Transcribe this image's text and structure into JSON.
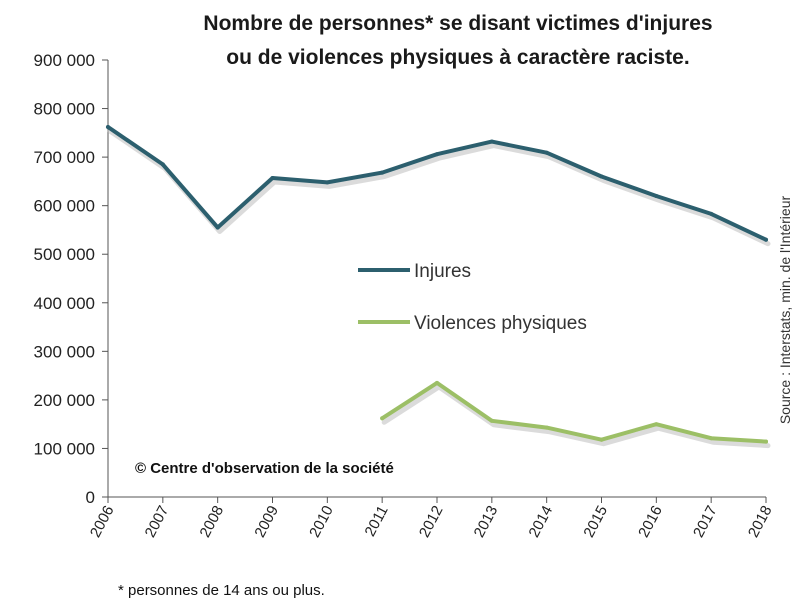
{
  "chart_data": {
    "type": "line",
    "title_line1": "Nombre de personnes* se disant victimes d'injures",
    "title_line2": "ou de violences physiques à caractère raciste.",
    "x": [
      "2006",
      "2007",
      "2008",
      "2009",
      "2010",
      "2011",
      "2012",
      "2013",
      "2014",
      "2015",
      "2016",
      "2017",
      "2018"
    ],
    "y_ticks": [
      "0",
      "100 000",
      "200 000",
      "300 000",
      "400 000",
      "500 000",
      "600 000",
      "700 000",
      "800 000",
      "900 000"
    ],
    "ylim": [
      0,
      900000
    ],
    "grid": false,
    "legend_position": "center",
    "series": [
      {
        "name": "Injures",
        "color": "#2c5f6e",
        "values": [
          762000,
          685000,
          555000,
          657000,
          648000,
          668000,
          706000,
          732000,
          709000,
          660000,
          620000,
          583000,
          530000
        ]
      },
      {
        "name": "Violences physiques",
        "color": "#9cbf66",
        "values": [
          null,
          null,
          null,
          null,
          null,
          162000,
          235000,
          157000,
          143000,
          118000,
          150000,
          121000,
          114000
        ]
      }
    ],
    "annotation": "© Centre d'observation de la société",
    "source": "Source : Interstats, min. de l'Intérieur",
    "footnote": "* personnes de 14 ans ou plus."
  }
}
